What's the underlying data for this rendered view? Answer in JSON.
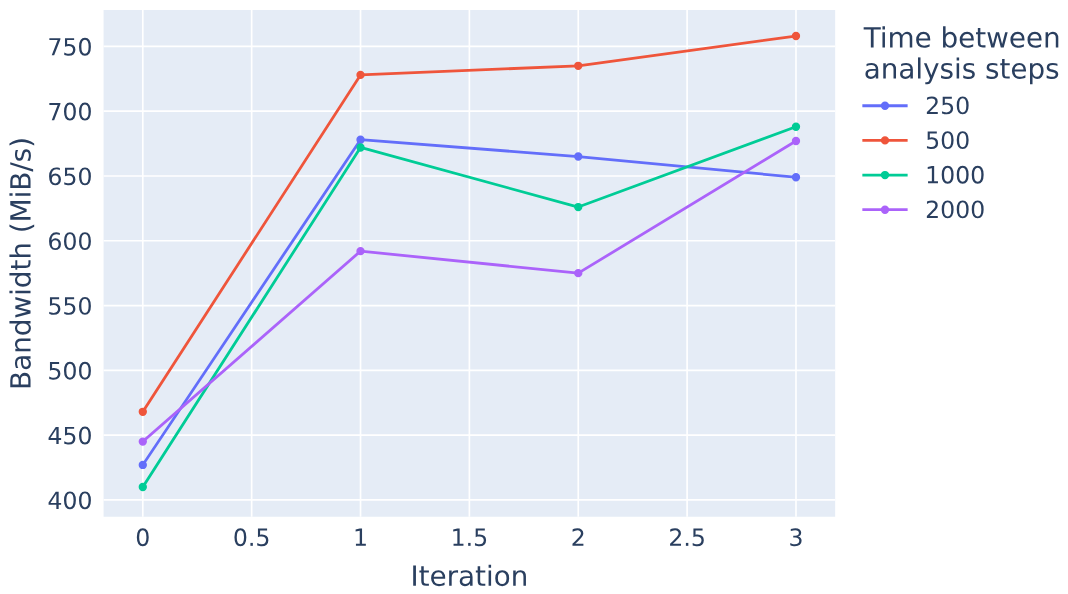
{
  "chart_data": {
    "type": "line",
    "xlabel": "Iteration",
    "ylabel": "Bandwidth (MiB/s)",
    "legend_title": "Time between\nanalysis steps",
    "x": [
      0,
      1,
      2,
      3
    ],
    "series": [
      {
        "name": "250",
        "color": "#636efa",
        "values": [
          427,
          678,
          665,
          649
        ]
      },
      {
        "name": "500",
        "color": "#ef553b",
        "values": [
          468,
          728,
          735,
          758
        ]
      },
      {
        "name": "1000",
        "color": "#00cc96",
        "values": [
          410,
          672,
          626,
          688
        ]
      },
      {
        "name": "2000",
        "color": "#ab63fa",
        "values": [
          445,
          592,
          575,
          677
        ]
      }
    ],
    "xlim": [
      -0.18,
      3.18
    ],
    "ylim": [
      387,
      778
    ],
    "xticks": [
      0,
      0.5,
      1,
      1.5,
      2,
      2.5,
      3
    ],
    "yticks": [
      400,
      450,
      500,
      550,
      600,
      650,
      700,
      750
    ],
    "grid": true,
    "legend": "right",
    "marker": "circle",
    "line_style": "solid"
  }
}
